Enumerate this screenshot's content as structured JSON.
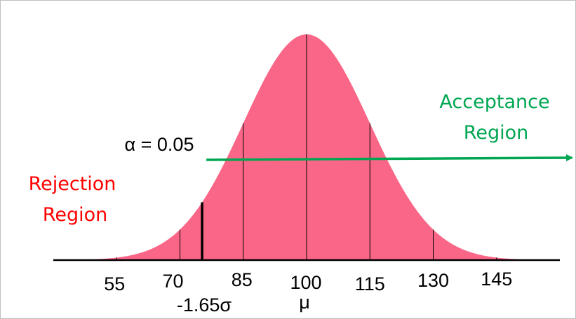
{
  "chart_data": {
    "type": "area",
    "distribution": "normal",
    "mean": 100,
    "sd": 15,
    "x_range": [
      40,
      160
    ],
    "tick_values": [
      55,
      70,
      85,
      100,
      115,
      130,
      145
    ],
    "tick_labels": [
      "55",
      "70",
      "85",
      "100",
      "115",
      "130",
      "145"
    ],
    "mu_label": "μ",
    "critical_value": 75.25,
    "critical_label": "-1.65σ",
    "alpha_label": "α = 0.05",
    "rejection_label": [
      "Rejection",
      "Region"
    ],
    "acceptance_label": [
      "Acceptance",
      "Region"
    ],
    "fill_color": "#fa6688",
    "rejection_color": "#ff0000",
    "acceptance_color": "#00a651",
    "arrow_color": "#00a651"
  }
}
